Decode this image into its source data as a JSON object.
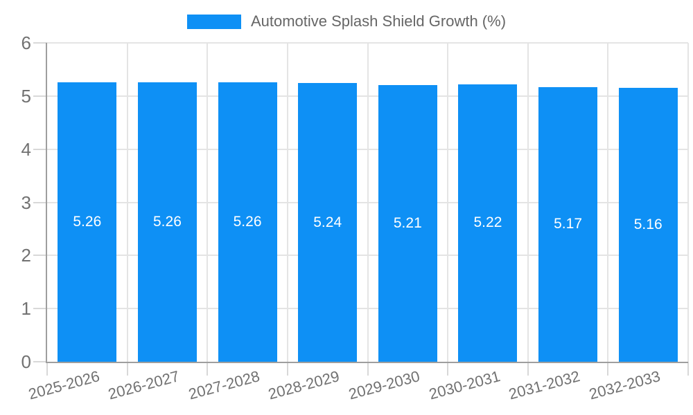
{
  "legend": {
    "label": "Automotive Splash Shield Growth (%)",
    "swatch_color": "#0e90f5"
  },
  "chart_data": {
    "type": "bar",
    "title": "Automotive Splash Shield Growth (%)",
    "categories": [
      "2025-2026",
      "2026-2027",
      "2027-2028",
      "2028-2029",
      "2029-2030",
      "2030-2031",
      "2031-2032",
      "2032-2033"
    ],
    "values": [
      5.26,
      5.26,
      5.26,
      5.24,
      5.21,
      5.22,
      5.17,
      5.16
    ],
    "value_labels": [
      "5.26",
      "5.26",
      "5.26",
      "5.24",
      "5.21",
      "5.22",
      "5.17",
      "5.16"
    ],
    "xlabel": "",
    "ylabel": "",
    "ylim": [
      0,
      6
    ],
    "ytick_step": 1,
    "ytick_labels": [
      "0",
      "1",
      "2",
      "3",
      "4",
      "5",
      "6"
    ],
    "grid": true,
    "legend_position": "top-center",
    "bar_color": "#0e90f5",
    "value_label_color": "#ffffff",
    "grid_color": "#e4e4e4",
    "axis_color": "#9e9e9e",
    "tick_color": "#d8d8d8",
    "tick_label_color": "#717171"
  }
}
